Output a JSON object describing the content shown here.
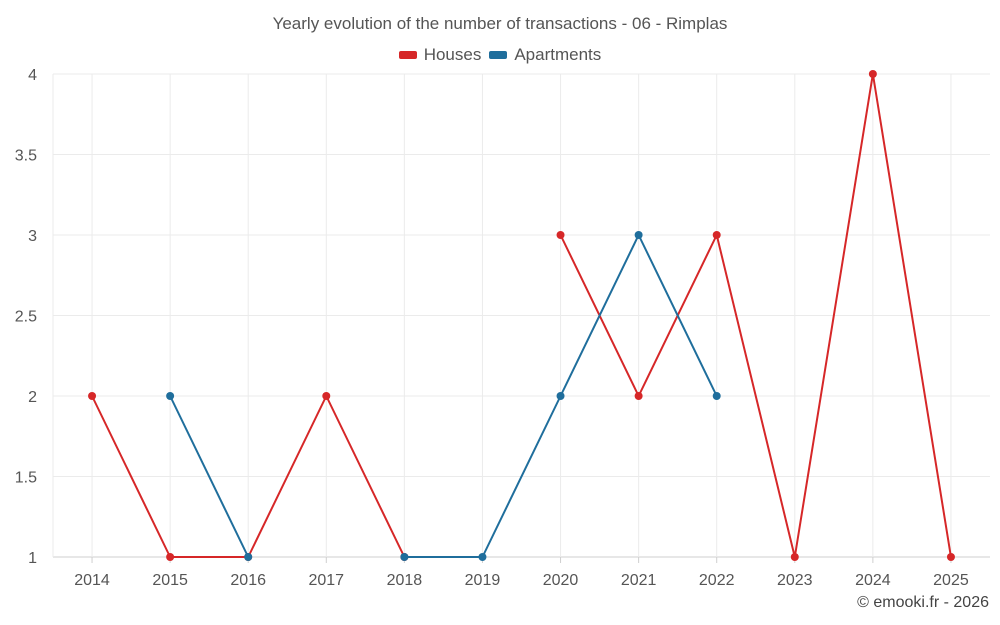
{
  "chart_data": {
    "type": "line",
    "title": "Yearly evolution of the number of transactions - 06 - Rimplas",
    "categories": [
      "2014",
      "2015",
      "2016",
      "2017",
      "2018",
      "2019",
      "2020",
      "2021",
      "2022",
      "2023",
      "2024",
      "2025"
    ],
    "ylim": [
      1,
      4
    ],
    "yticks": [
      "1",
      "1.5",
      "2",
      "2.5",
      "3",
      "3.5",
      "4"
    ],
    "grid": true,
    "legend_position": "top-center",
    "series": [
      {
        "name": "Houses",
        "color": "#d62728",
        "values": [
          2,
          1,
          1,
          2,
          1,
          null,
          3,
          2,
          3,
          1,
          4,
          1
        ]
      },
      {
        "name": "Apartments",
        "color": "#1f6e9c",
        "values": [
          null,
          2,
          1,
          null,
          1,
          1,
          2,
          3,
          2,
          null,
          null,
          null
        ]
      }
    ]
  },
  "credit": "© emooki.fr - 2026"
}
